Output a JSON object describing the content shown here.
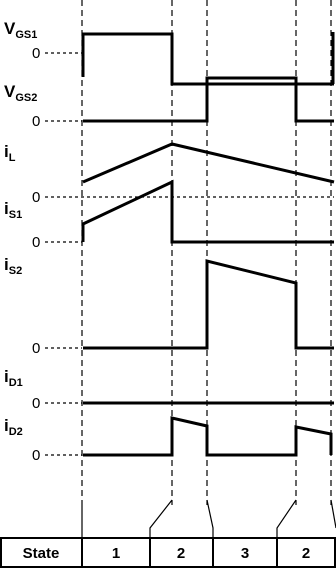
{
  "signals": [
    {
      "main": "V",
      "sub": "GS1",
      "zero": "0"
    },
    {
      "main": "V",
      "sub": "GS2",
      "zero": "0"
    },
    {
      "main": "i",
      "sub": "L",
      "zero": "0"
    },
    {
      "main": "i",
      "sub": "S1",
      "zero": "0"
    },
    {
      "main": "i",
      "sub": "S2",
      "zero": "0"
    },
    {
      "main": "i",
      "sub": "D1",
      "zero": "0"
    },
    {
      "main": "i",
      "sub": "D2",
      "zero": "0"
    }
  ],
  "state_table": {
    "header": "State",
    "cells": [
      "1",
      "2",
      "3",
      "2"
    ]
  }
}
